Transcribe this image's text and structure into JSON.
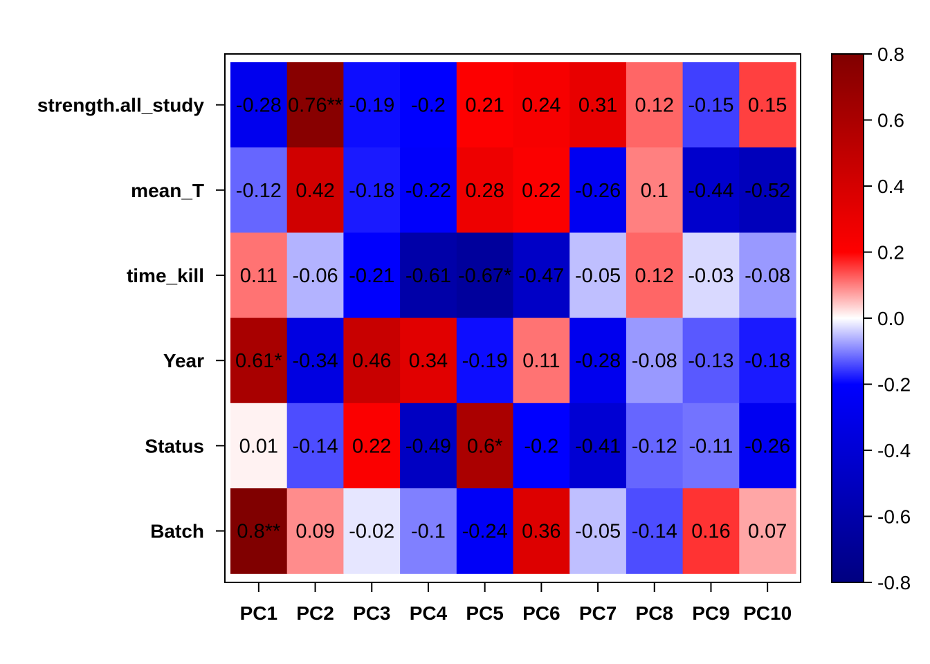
{
  "chart_data": {
    "type": "heatmap",
    "title": "",
    "xlabel": "",
    "ylabel": "",
    "x_categories": [
      "PC1",
      "PC2",
      "PC3",
      "PC4",
      "PC5",
      "PC6",
      "PC7",
      "PC8",
      "PC9",
      "PC10"
    ],
    "y_categories": [
      "strength.all_study",
      "mean_T",
      "time_kill",
      "Year",
      "Status",
      "Batch"
    ],
    "values": [
      [
        -0.28,
        0.76,
        -0.19,
        -0.2,
        0.21,
        0.24,
        0.31,
        0.12,
        -0.15,
        0.15
      ],
      [
        -0.12,
        0.42,
        -0.18,
        -0.22,
        0.28,
        0.22,
        -0.26,
        0.1,
        -0.44,
        -0.52
      ],
      [
        0.11,
        -0.06,
        -0.21,
        -0.61,
        -0.67,
        -0.47,
        -0.05,
        0.12,
        -0.03,
        -0.08
      ],
      [
        0.61,
        -0.34,
        0.46,
        0.34,
        -0.19,
        0.11,
        -0.28,
        -0.08,
        -0.13,
        -0.18
      ],
      [
        0.01,
        -0.14,
        0.22,
        -0.49,
        0.6,
        -0.2,
        -0.41,
        -0.12,
        -0.11,
        -0.26
      ],
      [
        0.8,
        0.09,
        -0.02,
        -0.1,
        -0.24,
        0.36,
        -0.05,
        -0.14,
        0.16,
        0.07
      ]
    ],
    "cell_labels": [
      [
        "-0.28",
        "0.76**",
        "-0.19",
        "-0.2",
        "0.21",
        "0.24",
        "0.31",
        "0.12",
        "-0.15",
        "0.15"
      ],
      [
        "-0.12",
        "0.42",
        "-0.18",
        "-0.22",
        "0.28",
        "0.22",
        "-0.26",
        "0.1",
        "-0.44",
        "-0.52"
      ],
      [
        "0.11",
        "-0.06",
        "-0.21",
        "-0.61",
        "-0.67*",
        "-0.47",
        "-0.05",
        "0.12",
        "-0.03",
        "-0.08"
      ],
      [
        "0.61*",
        "-0.34",
        "0.46",
        "0.34",
        "-0.19",
        "0.11",
        "-0.28",
        "-0.08",
        "-0.13",
        "-0.18"
      ],
      [
        "0.01",
        "-0.14",
        "0.22",
        "-0.49",
        "0.6*",
        "-0.2",
        "-0.41",
        "-0.12",
        "-0.11",
        "-0.26"
      ],
      [
        "0.8**",
        "0.09",
        "-0.02",
        "-0.1",
        "-0.24",
        "0.36",
        "-0.05",
        "-0.14",
        "0.16",
        "0.07"
      ]
    ],
    "colorbar": {
      "range": [
        -0.8,
        0.8
      ],
      "ticks": [
        "0.8",
        "0.6",
        "0.4",
        "0.2",
        "0.0",
        "-0.2",
        "-0.4",
        "-0.6",
        "-0.8"
      ],
      "colors": [
        {
          "value": -0.8,
          "color": "#000080"
        },
        {
          "value": -0.2,
          "color": "#0000ff"
        },
        {
          "value": 0.0,
          "color": "#ffffff"
        },
        {
          "value": 0.2,
          "color": "#ff0000"
        },
        {
          "value": 0.8,
          "color": "#800000"
        }
      ]
    },
    "grid": false,
    "legend": "right"
  }
}
